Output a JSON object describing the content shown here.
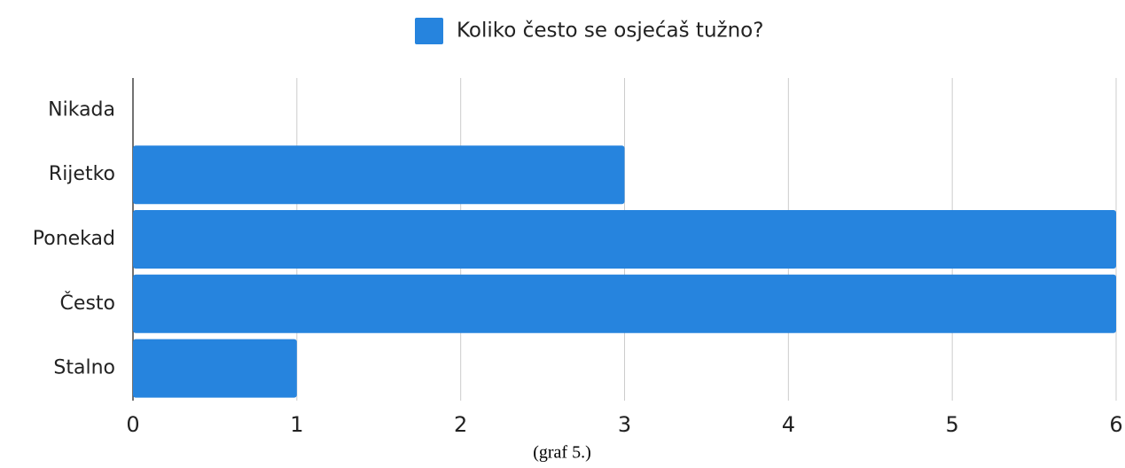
{
  "chart_data": {
    "type": "bar",
    "orientation": "horizontal",
    "categories": [
      "Nikada",
      "Rijetko",
      "Ponekad",
      "Često",
      "Stalno"
    ],
    "series": [
      {
        "name": "Koliko često se osjećaš tužno?",
        "color": "#2684de",
        "values": [
          0,
          3,
          6,
          6,
          1
        ]
      }
    ],
    "xlim": [
      0,
      6
    ],
    "xticks": [
      0,
      1,
      2,
      3,
      4,
      5,
      6
    ],
    "grid": true,
    "legend": "top",
    "caption": "(graf 5.)"
  }
}
